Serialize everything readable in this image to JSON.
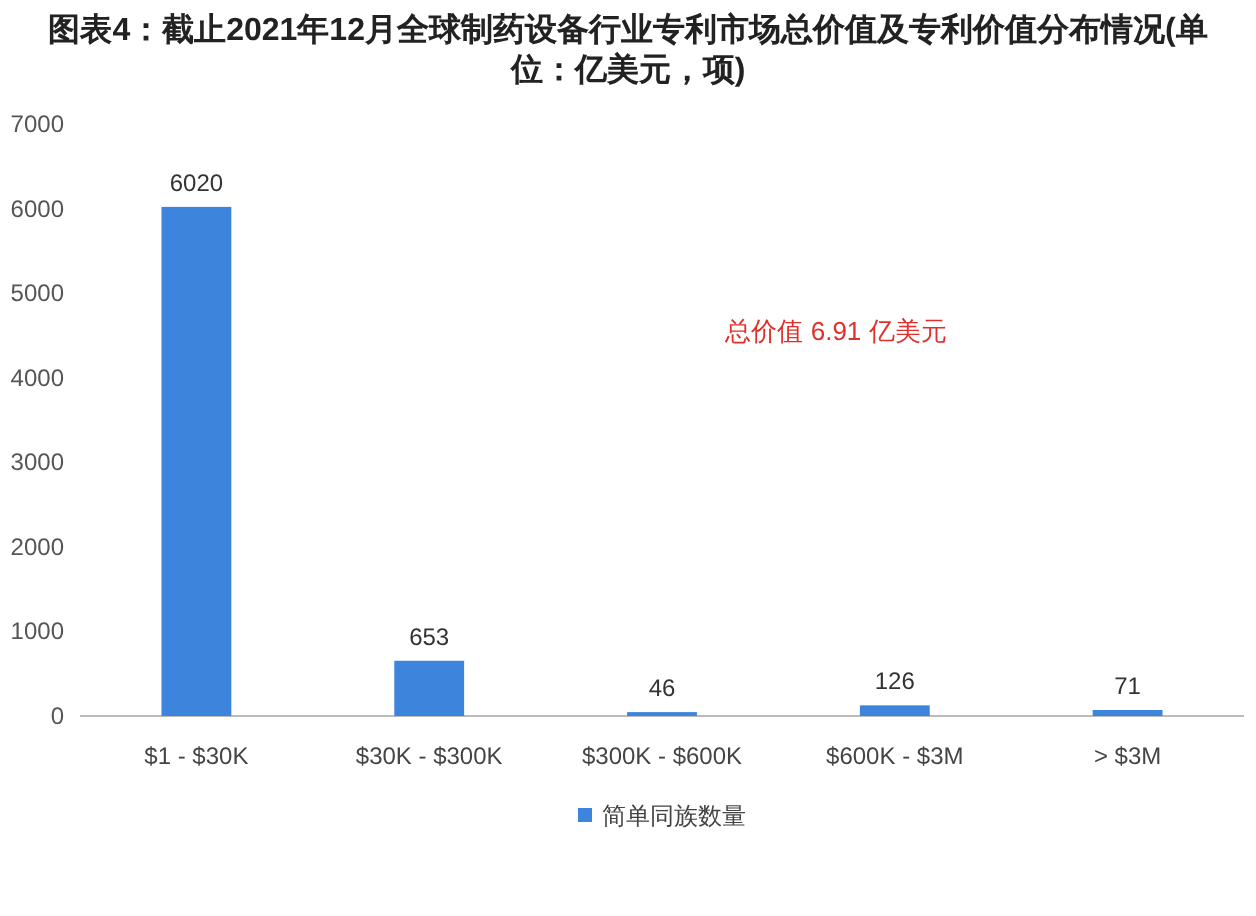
{
  "chart_data": {
    "type": "bar",
    "title": "图表4：截止2021年12月全球制药设备行业专利市场总价值及专利价值分布情况(单位：亿美元，项)",
    "categories": [
      "$1 - $30K",
      "$30K - $300K",
      "$300K - $600K",
      "$600K - $3M",
      "> $3M"
    ],
    "series": [
      {
        "name": "简单同族数量",
        "color": "#3d85dc",
        "values": [
          6020,
          653,
          46,
          126,
          71
        ]
      }
    ],
    "ylim": [
      0,
      7000
    ],
    "yticks": [
      0,
      1000,
      2000,
      3000,
      4000,
      5000,
      6000,
      7000
    ],
    "data_labels": true,
    "legend": "bottom",
    "annotations": [
      "总价值 6.91 亿美元"
    ]
  }
}
